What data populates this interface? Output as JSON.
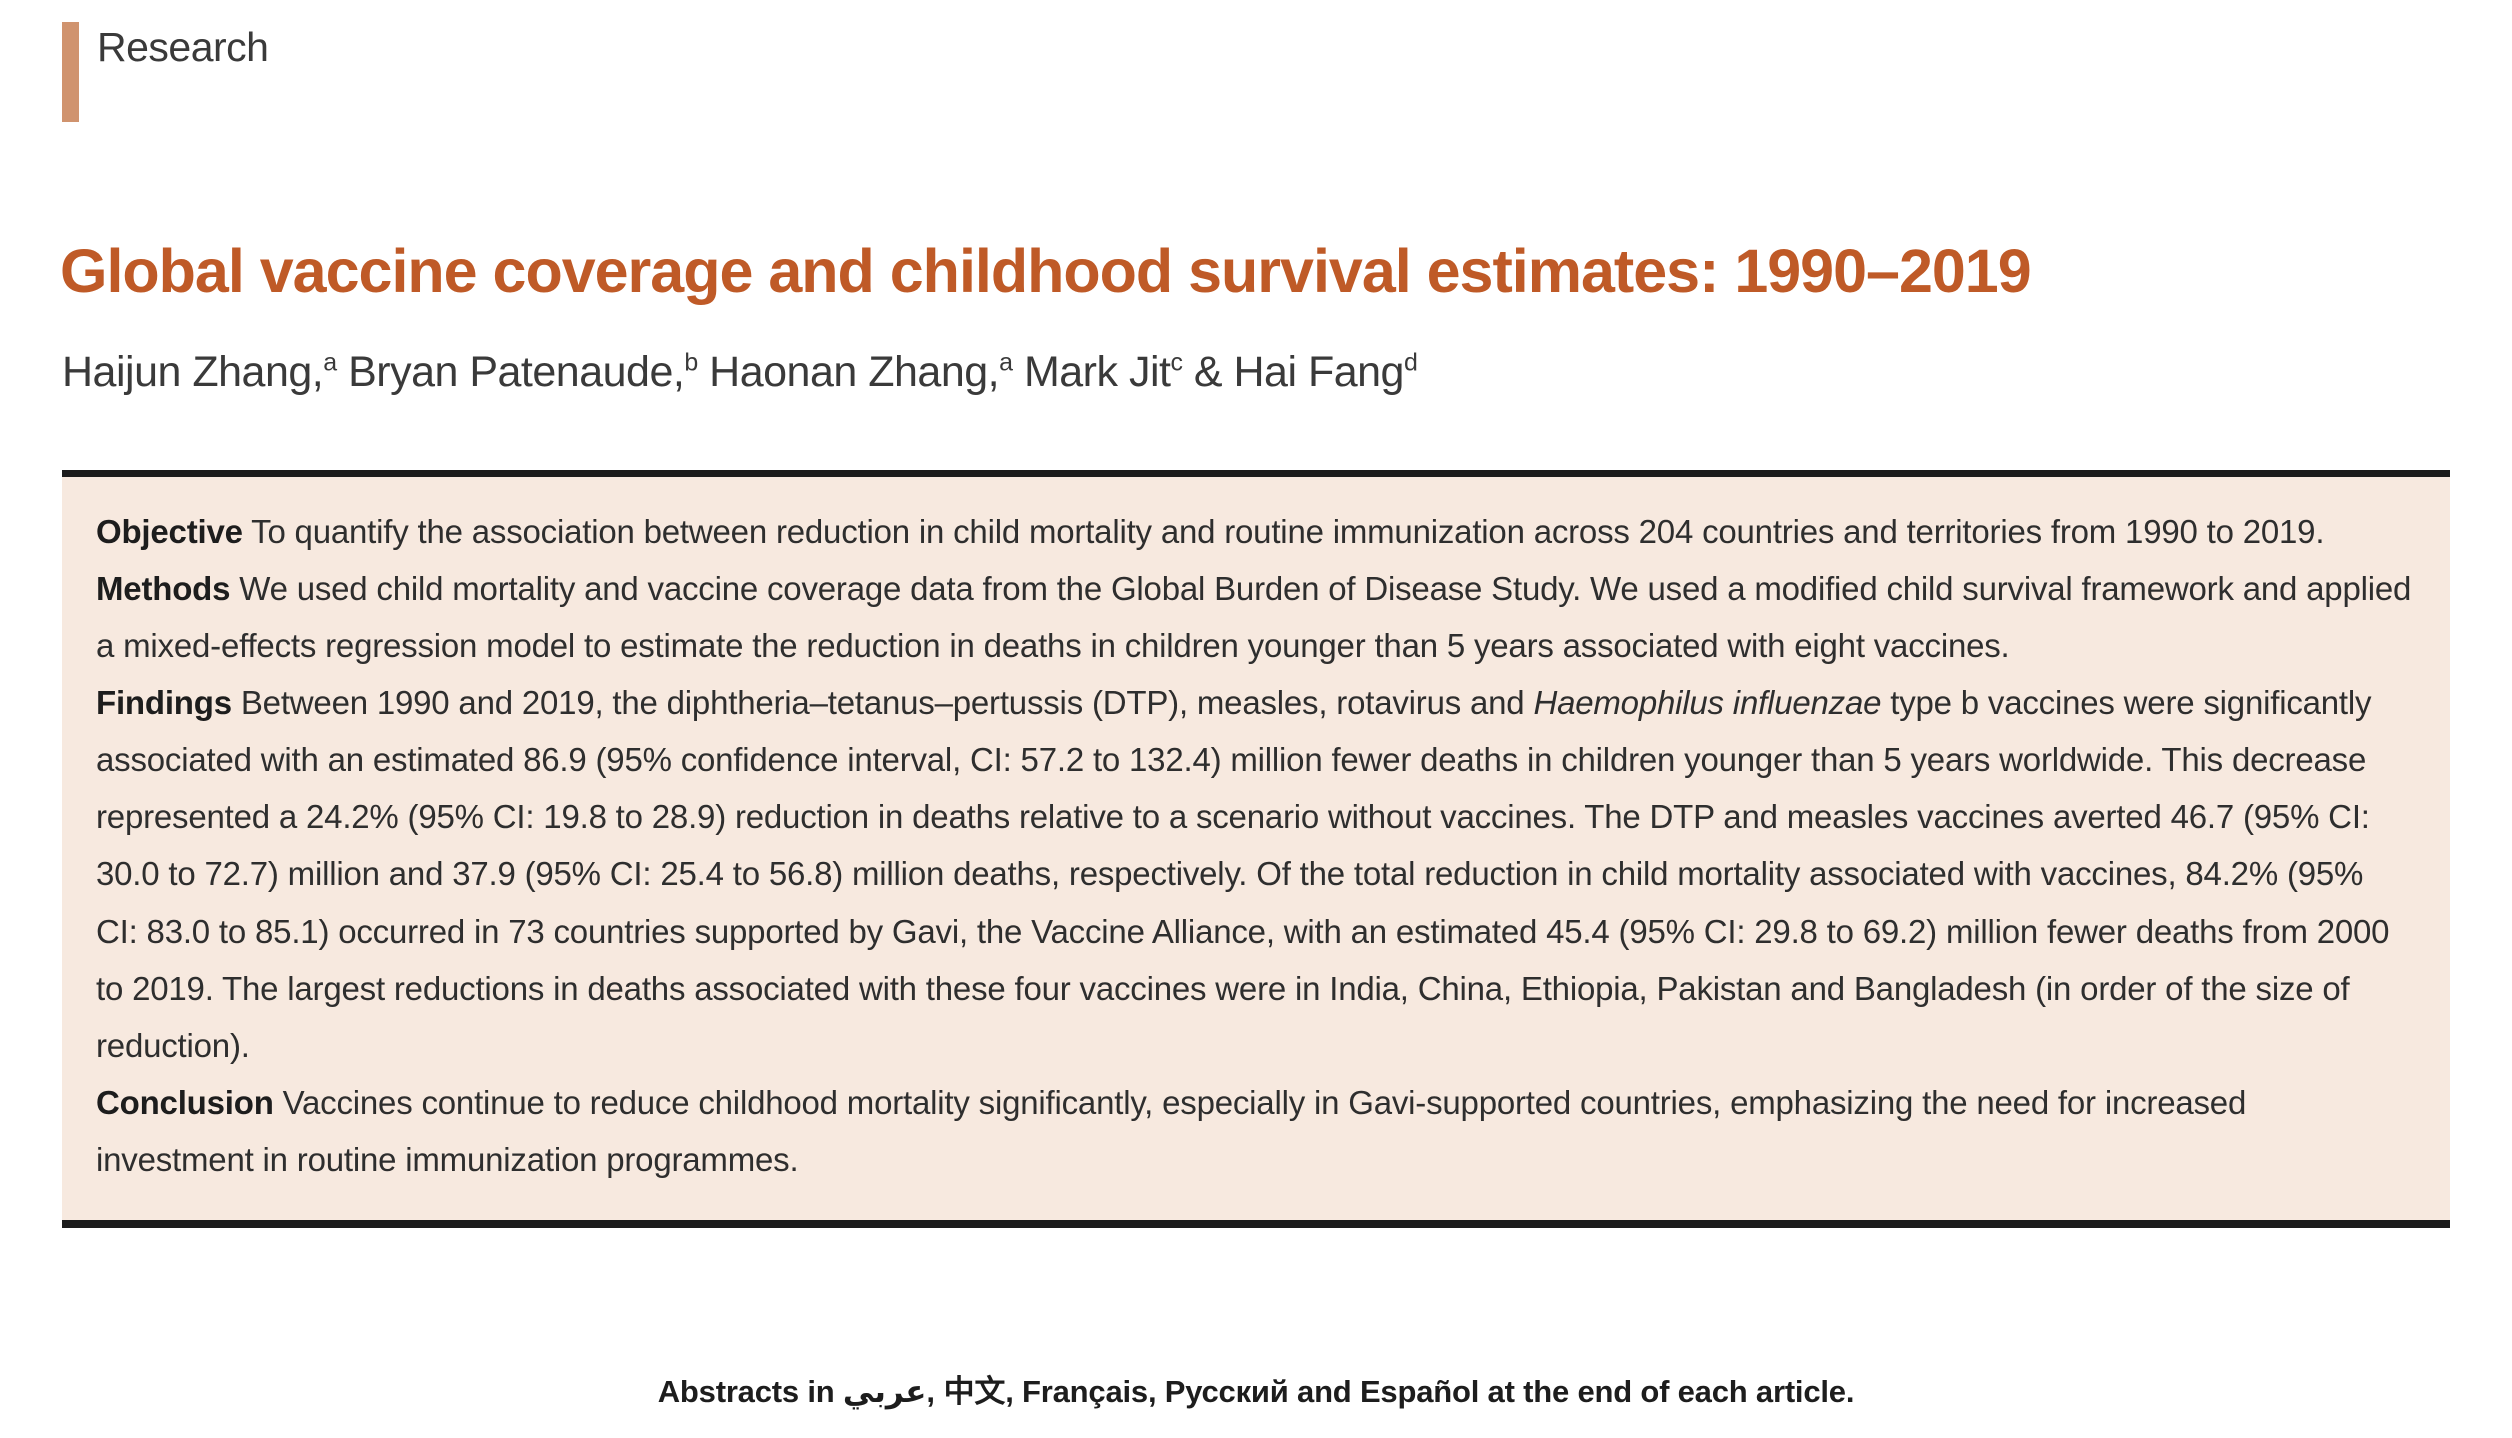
{
  "colors": {
    "kicker-bar": "#d0936e",
    "title-color": "#bf5a27",
    "abstract-bg": "#f7e9df",
    "rule-color": "#1c1c1c"
  },
  "header": {
    "kicker": "Research",
    "title": "Global vaccine coverage and childhood survival estimates: 1990–2019"
  },
  "authors": [
    {
      "name": "Haijun Zhang,",
      "sup": "a"
    },
    {
      "name": "Bryan Patenaude,",
      "sup": "b"
    },
    {
      "name": "Haonan Zhang,",
      "sup": "a"
    },
    {
      "name": "Mark Jit",
      "sup": "c"
    },
    {
      "name": "& Hai Fang",
      "sup": "d"
    }
  ],
  "abstract": {
    "sections": [
      {
        "label": "Objective",
        "text": " To quantify the association between reduction in child mortality and routine immunization across 204 countries and territories from 1990 to 2019."
      },
      {
        "label": "Methods",
        "text": " We used child mortality and vaccine coverage data from the Global Burden of Disease Study. We used a modified child survival framework and applied a mixed-effects regression model to estimate the reduction in deaths in children younger than 5 years associated with eight vaccines."
      },
      {
        "label": "Findings",
        "text_before_italic": " Between 1990 and 2019, the diphtheria–tetanus–pertussis (DTP), measles, rotavirus and ",
        "italic": "Haemophilus influenzae",
        "text_after_italic": " type b vaccines were significantly associated with an estimated 86.9 (95% confidence interval, CI: 57.2 to 132.4) million fewer deaths in children younger than 5 years worldwide. This decrease represented a 24.2% (95% CI: 19.8 to 28.9) reduction in deaths relative to a scenario without vaccines. The DTP and measles vaccines averted 46.7 (95% CI: 30.0 to 72.7) million and 37.9 (95% CI: 25.4 to 56.8) million deaths, respectively. Of the total reduction in child mortality associated with vaccines, 84.2% (95% CI: 83.0 to 85.1) occurred in 73 countries supported by Gavi, the Vaccine Alliance, with an estimated 45.4 (95% CI: 29.8 to 69.2) million fewer deaths from 2000 to 2019. The largest reductions in deaths associated with these four vaccines were in India, China, Ethiopia, Pakistan and Bangladesh (in order of the size of reduction)."
      },
      {
        "label": "Conclusion",
        "text": " Vaccines continue to reduce childhood mortality significantly, especially in Gavi-supported countries, emphasizing the need for increased investment in routine immunization programmes."
      }
    ]
  },
  "footer": {
    "languages": [
      "عربي",
      "中文",
      "Français",
      "Русский",
      "Español"
    ],
    "text": "Abstracts in  عربي,  中文,  Français,  Русский  and  Español  at the end of each article."
  }
}
